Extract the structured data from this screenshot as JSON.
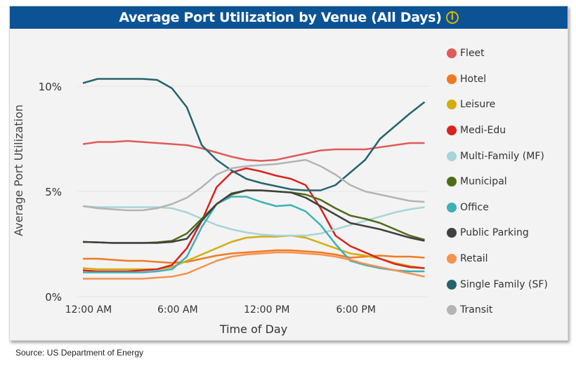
{
  "chart_data": {
    "type": "line",
    "title": "Average Port Utilization by Venue (All Days)",
    "xlabel": "Time of Day",
    "ylabel": "Average Port Utilization",
    "x_tick_labels": [
      "12:00 AM",
      "6:00 AM",
      "12:00 PM",
      "6:00 PM"
    ],
    "y_tick_labels": [
      "0%",
      "5%",
      "10%"
    ],
    "ylim": [
      0,
      10.5
    ],
    "x_hours": [
      0,
      1,
      2,
      3,
      4,
      5,
      6,
      7,
      8,
      9,
      10,
      11,
      12,
      13,
      14,
      15,
      16,
      17,
      18,
      19,
      20,
      21,
      22,
      23
    ],
    "legend_position": "right",
    "series": [
      {
        "name": "Fleet",
        "color": "#e05a5a",
        "values": [
          7.25,
          7.35,
          7.35,
          7.4,
          7.35,
          7.3,
          7.25,
          7.2,
          7.05,
          6.85,
          6.65,
          6.5,
          6.45,
          6.5,
          6.65,
          6.8,
          6.95,
          7.0,
          7.0,
          7.0,
          7.1,
          7.2,
          7.3,
          7.3
        ]
      },
      {
        "name": "Hotel",
        "color": "#f07a22",
        "values": [
          1.8,
          1.8,
          1.75,
          1.7,
          1.7,
          1.65,
          1.6,
          1.65,
          1.8,
          1.95,
          2.05,
          2.1,
          2.15,
          2.2,
          2.2,
          2.15,
          2.1,
          2.0,
          1.85,
          1.9,
          1.95,
          1.9,
          1.9,
          1.85
        ]
      },
      {
        "name": "Leisure",
        "color": "#d4ac0d",
        "values": [
          1.35,
          1.3,
          1.3,
          1.3,
          1.3,
          1.3,
          1.4,
          1.7,
          2.0,
          2.3,
          2.6,
          2.8,
          2.85,
          2.85,
          2.9,
          2.8,
          2.55,
          2.3,
          2.05,
          1.95,
          1.8,
          1.6,
          1.45,
          1.35
        ]
      },
      {
        "name": "Medi-Edu",
        "color": "#d8231e",
        "values": [
          1.25,
          1.2,
          1.2,
          1.2,
          1.25,
          1.3,
          1.5,
          2.3,
          3.6,
          5.2,
          5.9,
          6.1,
          5.95,
          5.75,
          5.6,
          5.3,
          4.2,
          2.9,
          2.4,
          2.1,
          1.8,
          1.55,
          1.4,
          1.35
        ]
      },
      {
        "name": "Multi-Family (MF)",
        "color": "#a8d4d8",
        "values": [
          4.3,
          4.25,
          4.25,
          4.25,
          4.25,
          4.25,
          4.2,
          4.0,
          3.7,
          3.4,
          3.2,
          3.05,
          2.95,
          2.9,
          2.9,
          2.9,
          3.0,
          3.2,
          3.4,
          3.6,
          3.8,
          4.0,
          4.15,
          4.25
        ]
      },
      {
        "name": "Municipal",
        "color": "#4f6b18",
        "values": [
          2.6,
          2.58,
          2.55,
          2.55,
          2.55,
          2.58,
          2.65,
          3.0,
          3.7,
          4.4,
          4.85,
          5.05,
          5.05,
          5.0,
          4.95,
          4.85,
          4.6,
          4.2,
          3.85,
          3.7,
          3.5,
          3.2,
          2.9,
          2.7
        ]
      },
      {
        "name": "Office",
        "color": "#3bb1b8",
        "values": [
          1.15,
          1.15,
          1.15,
          1.15,
          1.15,
          1.2,
          1.3,
          1.9,
          3.3,
          4.4,
          4.75,
          4.75,
          4.5,
          4.3,
          4.35,
          4.05,
          3.4,
          2.5,
          1.7,
          1.5,
          1.35,
          1.25,
          1.2,
          1.2
        ]
      },
      {
        "name": "Public Parking",
        "color": "#404040",
        "values": [
          2.6,
          2.58,
          2.55,
          2.55,
          2.55,
          2.55,
          2.6,
          2.75,
          3.6,
          4.4,
          4.9,
          5.05,
          5.05,
          5.0,
          4.95,
          4.7,
          4.3,
          3.9,
          3.5,
          3.35,
          3.2,
          3.0,
          2.8,
          2.65
        ]
      },
      {
        "name": "Retail",
        "color": "#f5924e",
        "values": [
          0.85,
          0.85,
          0.85,
          0.85,
          0.85,
          0.9,
          0.95,
          1.1,
          1.4,
          1.7,
          1.9,
          2.0,
          2.05,
          2.1,
          2.1,
          2.05,
          2.0,
          1.9,
          1.75,
          1.55,
          1.4,
          1.25,
          1.1,
          0.95
        ]
      },
      {
        "name": "Single Family (SF)",
        "color": "#25646e",
        "values": [
          10.15,
          10.35,
          10.35,
          10.35,
          10.35,
          10.3,
          9.9,
          9.0,
          7.2,
          6.5,
          6.0,
          5.6,
          5.4,
          5.25,
          5.1,
          5.05,
          5.05,
          5.3,
          5.9,
          6.5,
          7.5,
          8.1,
          8.7,
          9.25
        ]
      },
      {
        "name": "Transit",
        "color": "#b4b4b4",
        "values": [
          4.3,
          4.2,
          4.15,
          4.1,
          4.1,
          4.2,
          4.4,
          4.7,
          5.2,
          5.8,
          6.1,
          6.2,
          6.25,
          6.3,
          6.4,
          6.5,
          6.2,
          5.8,
          5.3,
          5.0,
          4.85,
          4.7,
          4.55,
          4.5
        ]
      }
    ]
  },
  "info_icon": "info-circle-icon",
  "info_color": "#e0b400",
  "title_bar_color": "#0b5394",
  "source": "Source: US Department of Energy"
}
